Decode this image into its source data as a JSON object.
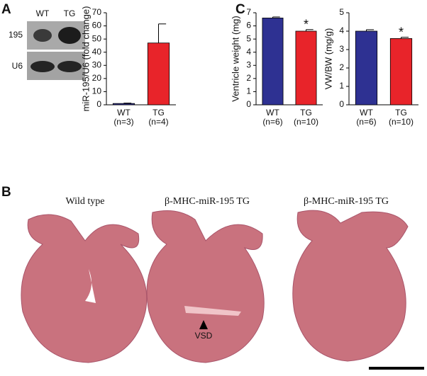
{
  "panels": {
    "a": "A",
    "b": "B",
    "c": "C"
  },
  "blot": {
    "lanes": [
      "WT",
      "TG"
    ],
    "rows": [
      "195",
      "U6"
    ]
  },
  "histology": {
    "captions": [
      "Wild type",
      "β-MHC-miR-195 TG",
      "β-MHC-miR-195 TG"
    ],
    "arrow_label": "VSD"
  },
  "chart_data": [
    {
      "type": "bar",
      "ylabel": "miR-195/U6 (fold change)",
      "categories": [
        "WT",
        "TG"
      ],
      "n_labels": [
        "(n=3)",
        "(n=4)"
      ],
      "values": [
        1,
        47
      ],
      "errors": [
        0.3,
        14.5
      ],
      "colors": [
        "#2e3192",
        "#e8242a"
      ],
      "significance": [
        null,
        null
      ],
      "ylim": [
        0,
        70
      ],
      "yticks": [
        0,
        10,
        20,
        30,
        40,
        50,
        60,
        70
      ]
    },
    {
      "type": "bar",
      "ylabel": "Ventricle weight (mg)",
      "categories": [
        "WT",
        "TG"
      ],
      "n_labels": [
        "(n=6)",
        "(n=10)"
      ],
      "values": [
        6.6,
        5.6
      ],
      "errors": [
        0.08,
        0.12
      ],
      "colors": [
        "#2e3192",
        "#e8242a"
      ],
      "significance": [
        null,
        "*"
      ],
      "ylim": [
        0,
        7
      ],
      "yticks": [
        0,
        1,
        2,
        3,
        4,
        5,
        6,
        7
      ]
    },
    {
      "type": "bar",
      "ylabel": "VW/BW (mg/g)",
      "categories": [
        "WT",
        "TG"
      ],
      "n_labels": [
        "(n=6)",
        "(n=10)"
      ],
      "values": [
        4.0,
        3.6
      ],
      "errors": [
        0.08,
        0.07
      ],
      "colors": [
        "#2e3192",
        "#e8242a"
      ],
      "significance": [
        null,
        "*"
      ],
      "ylim": [
        0,
        5
      ],
      "yticks": [
        0,
        1,
        2,
        3,
        4,
        5
      ]
    }
  ]
}
